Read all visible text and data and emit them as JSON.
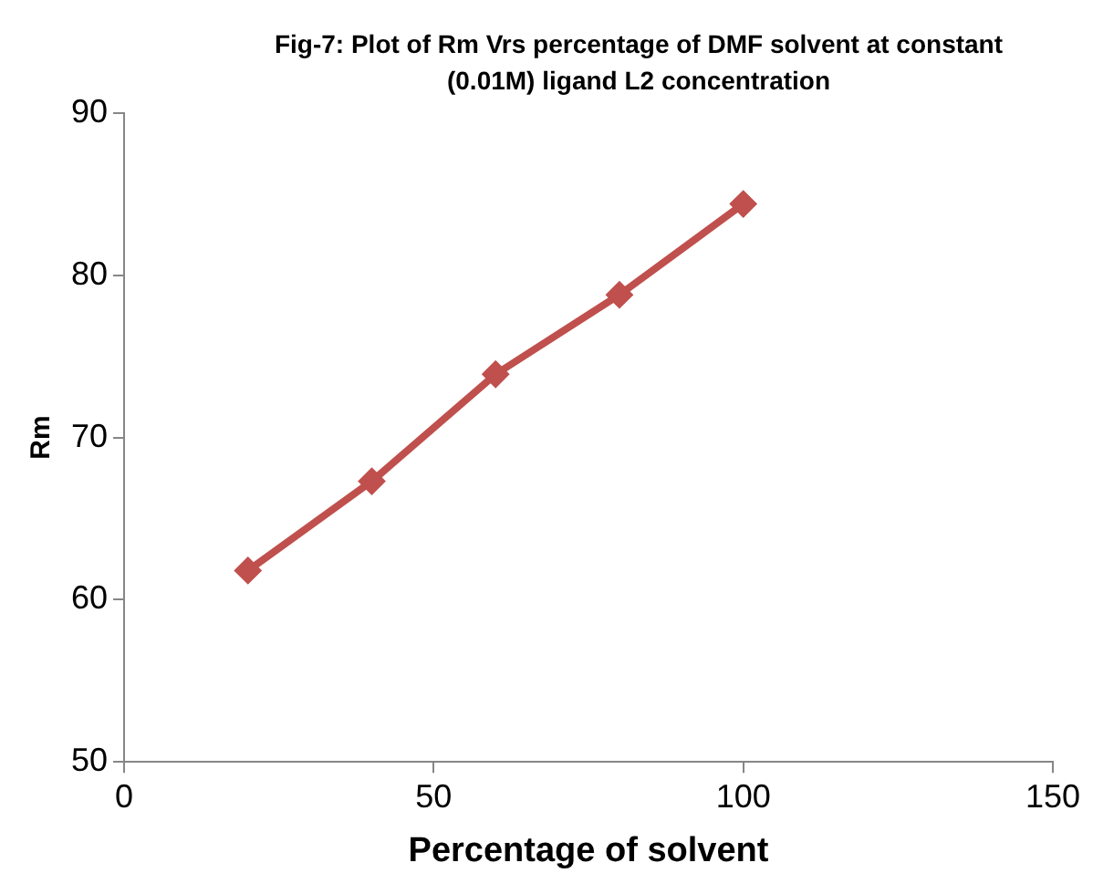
{
  "chart_data": {
    "type": "line",
    "title": "Fig-7: Plot of Rm Vrs percentage of DMF solvent at constant (0.01M) ligand  L2 concentration",
    "xlabel": "Percentage of solvent",
    "ylabel": "Rm",
    "x": [
      20,
      40,
      60,
      80,
      100
    ],
    "series": [
      {
        "color": "#c0504d",
        "values": [
          61.8,
          67.3,
          73.9,
          78.8,
          84.4
        ]
      }
    ],
    "xlim": [
      0,
      150
    ],
    "xticks": [
      0,
      50,
      100,
      150
    ],
    "ylim": [
      50,
      90
    ],
    "yticks": [
      50,
      60,
      70,
      80,
      90
    ],
    "grid": false,
    "legend": false,
    "marker": "diamond",
    "line_style": "solid"
  }
}
